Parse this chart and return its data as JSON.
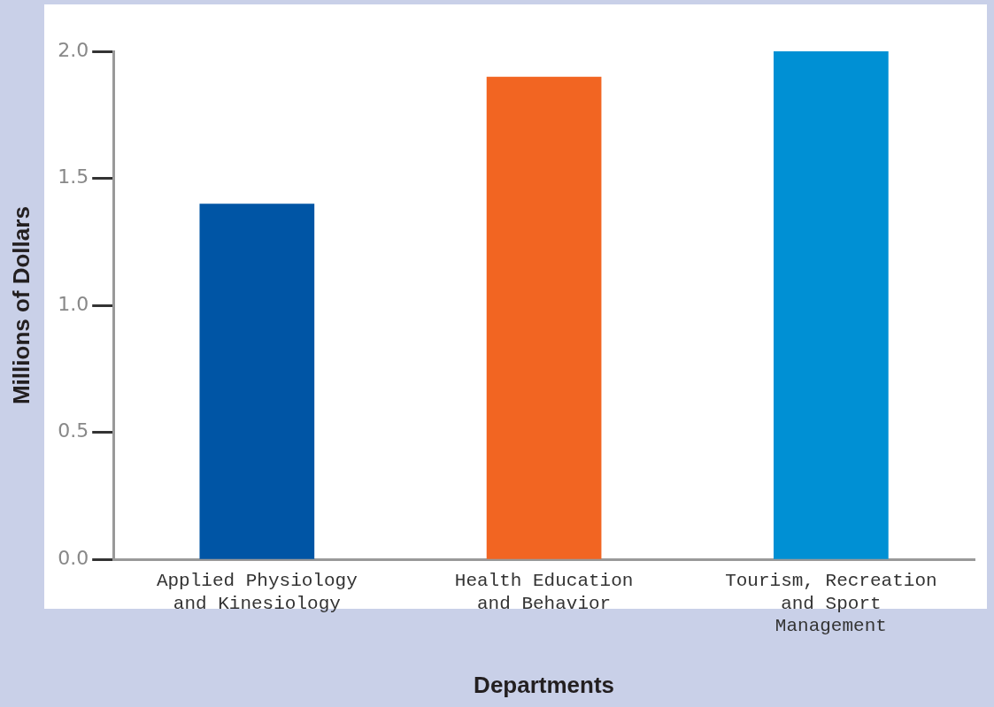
{
  "chart_data": {
    "type": "bar",
    "xlabel": "Departments",
    "ylabel": "Millions of Dollars",
    "categories": [
      "Applied Physiology and Kinesiology",
      "Health Education and Behavior",
      "Tourism, Recreation and Sport Management"
    ],
    "values": [
      1.4,
      1.9,
      2.0
    ],
    "colors": [
      "#0055a5",
      "#f26522",
      "#0090d4"
    ],
    "ylim": [
      0,
      2.0
    ],
    "yticks": [
      {
        "value": 0,
        "label": "0.0"
      },
      0.5,
      {
        "value": 1,
        "label": "1.0"
      },
      1.5,
      {
        "value": 2,
        "label": "2.0"
      }
    ],
    "grid": false,
    "legend": false
  }
}
